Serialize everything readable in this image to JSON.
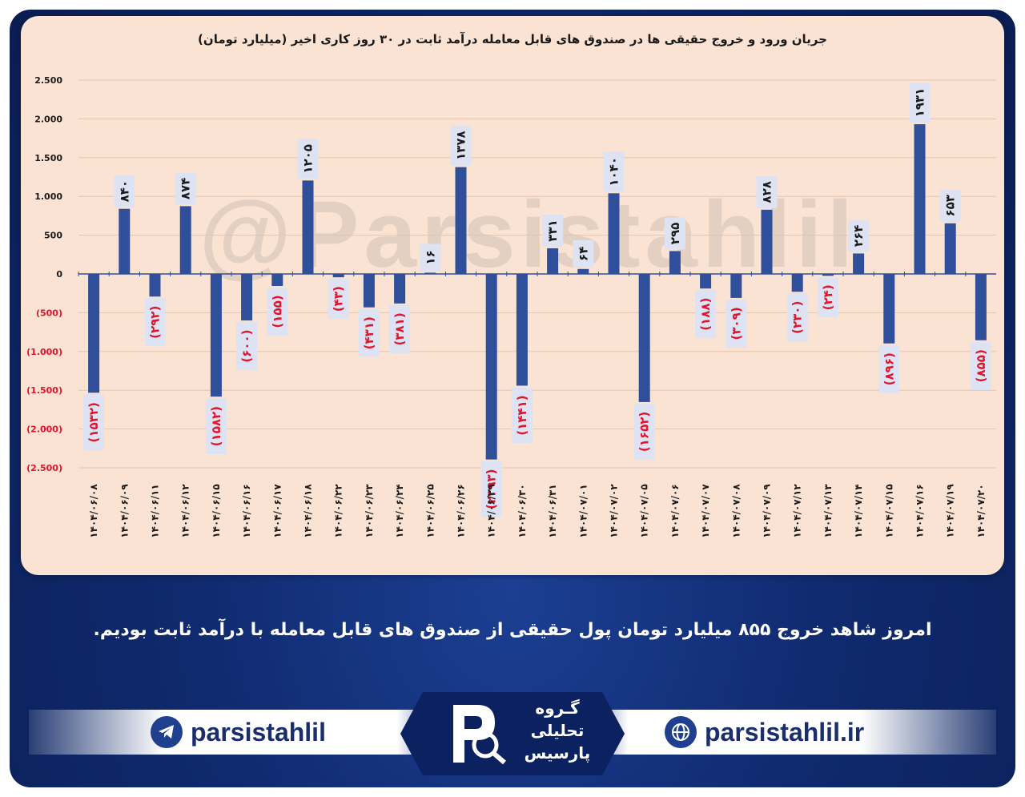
{
  "page": {
    "message": "امروز شاهد خروج ۸۵۵ میلیارد تومان پول حقیقی از صندوق های قابل معامله با درآمد ثابت بودیم.",
    "watermark": "@Parsistahlil",
    "footer": {
      "telegram_handle": "parsistahlil",
      "website": "parsistahlil.ir",
      "logo_lines": [
        "گـروه",
        "تحلیلی",
        "پارسیس"
      ]
    },
    "colors": {
      "bar": "#2f4f9a",
      "positive_label": "#1a1a1a",
      "negative_label": "#e0142b",
      "label_box": "#dde3f2"
    }
  },
  "chart_data": {
    "type": "bar",
    "title": "جریان ورود و خروج حقیقی ها در صندوق های قابل معامله درآمد ثابت در ۳۰ روز کاری اخیر (میلیارد تومان)",
    "ylim": [
      -2500,
      2500
    ],
    "grid": true,
    "yticks": [
      {
        "value": 2500,
        "label": "2.500"
      },
      {
        "value": 2000,
        "label": "2.000"
      },
      {
        "value": 1500,
        "label": "1.500"
      },
      {
        "value": 1000,
        "label": "1.000"
      },
      {
        "value": 500,
        "label": "500"
      },
      {
        "value": 0,
        "label": "0"
      },
      {
        "value": -500,
        "label": "(500)"
      },
      {
        "value": -1000,
        "label": "(1.000)"
      },
      {
        "value": -1500,
        "label": "(1.500)"
      },
      {
        "value": -2000,
        "label": "(2.000)"
      },
      {
        "value": -2500,
        "label": "(2.500)"
      }
    ],
    "categories": [
      "۱۴۰۴/۰۶/۰۸",
      "۱۴۰۴/۰۶/۰۹",
      "۱۴۰۴/۰۶/۱۱",
      "۱۴۰۴/۰۶/۱۲",
      "۱۴۰۴/۰۶/۱۵",
      "۱۴۰۴/۰۶/۱۶",
      "۱۴۰۴/۰۶/۱۷",
      "۱۴۰۴/۰۶/۱۸",
      "۱۴۰۴/۰۶/۲۲",
      "۱۴۰۴/۰۶/۲۳",
      "۱۴۰۴/۰۶/۲۴",
      "۱۴۰۴/۰۶/۲۵",
      "۱۴۰۴/۰۶/۲۶",
      "۱۴۰۴/۰۶/۲۹",
      "۱۴۰۴/۰۶/۳۰",
      "۱۴۰۴/۰۶/۳۱",
      "۱۴۰۴/۰۷/۰۱",
      "۱۴۰۴/۰۷/۰۲",
      "۱۴۰۴/۰۷/۰۵",
      "۱۴۰۴/۰۷/۰۶",
      "۱۴۰۴/۰۷/۰۷",
      "۱۴۰۴/۰۷/۰۸",
      "۱۴۰۴/۰۷/۰۹",
      "۱۴۰۴/۰۷/۱۲",
      "۱۴۰۴/۰۷/۱۳",
      "۱۴۰۴/۰۷/۱۴",
      "۱۴۰۴/۰۷/۱۵",
      "۱۴۰۴/۰۷/۱۶",
      "۱۴۰۴/۰۷/۱۹",
      "۱۴۰۴/۰۷/۲۰"
    ],
    "values": [
      -1532,
      840,
      -292,
      874,
      -1582,
      -600,
      -155,
      1205,
      -43,
      -431,
      -381,
      16,
      1378,
      -2393,
      -1441,
      331,
      64,
      1040,
      -1652,
      295,
      -188,
      -309,
      828,
      -230,
      -24,
      264,
      -896,
      1931,
      653,
      -855
    ],
    "data_labels": [
      "(۱۵۳۲)",
      "۸۴۰",
      "(۲۹۲)",
      "۸۷۴",
      "(۱۵۸۲)",
      "(۶۰۰)",
      "(۱۵۵)",
      "۱۲۰۵",
      "(۴۳)",
      "(۴۳۱)",
      "(۳۸۱)",
      "۱۶",
      "۱۳۷۸",
      "(۲۳۹۳)",
      "(۱۴۴۱)",
      "۳۳۱",
      "۶۴",
      "۱۰۴۰",
      "(۱۶۵۲)",
      "۲۹۵",
      "(۱۸۸)",
      "(۳۰۹)",
      "۸۲۸",
      "(۲۳۰)",
      "(۲۴)",
      "۲۶۴",
      "(۸۹۶)",
      "۱۹۳۱",
      "۶۵۳",
      "(۸۵۵)"
    ]
  }
}
